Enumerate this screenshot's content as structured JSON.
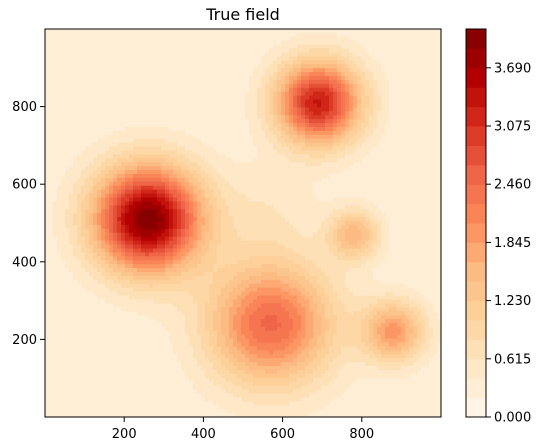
{
  "chart_data": {
    "type": "heatmap",
    "subtype": "filled-contour",
    "title": "True field",
    "xlabel": "",
    "ylabel": "",
    "xlim": [
      0,
      1000
    ],
    "ylim": [
      0,
      1000
    ],
    "x_ticks": [
      200,
      400,
      600,
      800
    ],
    "y_ticks": [
      200,
      400,
      600,
      800
    ],
    "colormap": "OrRd",
    "colorbar": {
      "min": 0.0,
      "max": 4.1,
      "ticks": [
        "0.000",
        "0.615",
        "1.230",
        "1.845",
        "2.460",
        "3.075",
        "3.690"
      ],
      "levels": 20
    },
    "peaks": [
      {
        "x": 260,
        "y": 510,
        "value": 4.05
      },
      {
        "x": 690,
        "y": 810,
        "value": 3.3
      },
      {
        "x": 570,
        "y": 240,
        "value": 2.5
      },
      {
        "x": 880,
        "y": 220,
        "value": 1.9
      },
      {
        "x": 780,
        "y": 470,
        "value": 1.55
      },
      {
        "x": 560,
        "y": 530,
        "value": 0.75
      }
    ],
    "grid": false,
    "legend": "none"
  }
}
